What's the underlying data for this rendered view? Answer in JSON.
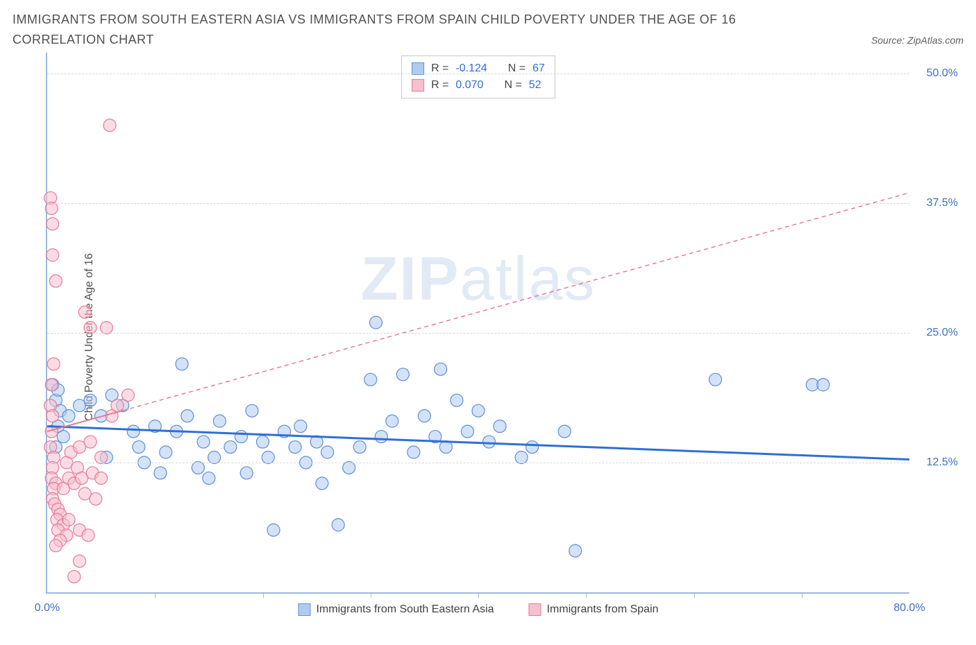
{
  "title": "IMMIGRANTS FROM SOUTH EASTERN ASIA VS IMMIGRANTS FROM SPAIN CHILD POVERTY UNDER THE AGE OF 16 CORRELATION CHART",
  "source_label": "Source: ZipAtlas.com",
  "y_axis_label": "Child Poverty Under the Age of 16",
  "watermark_bold": "ZIP",
  "watermark_rest": "atlas",
  "series": [
    {
      "key": "sea",
      "name": "Immigrants from South Eastern Asia",
      "fill": "#aecbef",
      "stroke": "#5e8fd6",
      "fill_opacity": 0.55,
      "trend_color": "#2e6fd6",
      "trend_width": 3,
      "trend_dash": "",
      "R": "-0.124",
      "N": "67",
      "trend_y_at_x0": 16.0,
      "trend_y_at_x80": 12.8,
      "points": [
        [
          0.5,
          20.0
        ],
        [
          0.8,
          18.5
        ],
        [
          1.0,
          19.5
        ],
        [
          1.2,
          17.5
        ],
        [
          1.0,
          16.0
        ],
        [
          1.5,
          15.0
        ],
        [
          0.8,
          14.0
        ],
        [
          2.0,
          17.0
        ],
        [
          3.0,
          18.0
        ],
        [
          4.0,
          18.5
        ],
        [
          5.0,
          17.0
        ],
        [
          5.5,
          13.0
        ],
        [
          6.0,
          19.0
        ],
        [
          7.0,
          18.0
        ],
        [
          8.0,
          15.5
        ],
        [
          8.5,
          14.0
        ],
        [
          9.0,
          12.5
        ],
        [
          10.0,
          16.0
        ],
        [
          10.5,
          11.5
        ],
        [
          11.0,
          13.5
        ],
        [
          12.0,
          15.5
        ],
        [
          12.5,
          22.0
        ],
        [
          13.0,
          17.0
        ],
        [
          14.0,
          12.0
        ],
        [
          14.5,
          14.5
        ],
        [
          15.0,
          11.0
        ],
        [
          15.5,
          13.0
        ],
        [
          16.0,
          16.5
        ],
        [
          17.0,
          14.0
        ],
        [
          18.0,
          15.0
        ],
        [
          18.5,
          11.5
        ],
        [
          19.0,
          17.5
        ],
        [
          20.0,
          14.5
        ],
        [
          20.5,
          13.0
        ],
        [
          21.0,
          6.0
        ],
        [
          22.0,
          15.5
        ],
        [
          23.0,
          14.0
        ],
        [
          23.5,
          16.0
        ],
        [
          24.0,
          12.5
        ],
        [
          25.0,
          14.5
        ],
        [
          25.5,
          10.5
        ],
        [
          26.0,
          13.5
        ],
        [
          27.0,
          6.5
        ],
        [
          28.0,
          12.0
        ],
        [
          29.0,
          14.0
        ],
        [
          30.0,
          20.5
        ],
        [
          30.5,
          26.0
        ],
        [
          31.0,
          15.0
        ],
        [
          32.0,
          16.5
        ],
        [
          33.0,
          21.0
        ],
        [
          34.0,
          13.5
        ],
        [
          35.0,
          17.0
        ],
        [
          36.0,
          15.0
        ],
        [
          36.5,
          21.5
        ],
        [
          37.0,
          14.0
        ],
        [
          38.0,
          18.5
        ],
        [
          39.0,
          15.5
        ],
        [
          40.0,
          17.5
        ],
        [
          41.0,
          14.5
        ],
        [
          42.0,
          16.0
        ],
        [
          44.0,
          13.0
        ],
        [
          45.0,
          14.0
        ],
        [
          48.0,
          15.5
        ],
        [
          49.0,
          4.0
        ],
        [
          62.0,
          20.5
        ],
        [
          71.0,
          20.0
        ],
        [
          72.0,
          20.0
        ]
      ]
    },
    {
      "key": "spain",
      "name": "Immigrants from Spain",
      "fill": "#f7c0ce",
      "stroke": "#e77a95",
      "fill_opacity": 0.55,
      "trend_color": "#e77a95",
      "trend_width": 2,
      "trend_dash": "6 5",
      "R": "0.070",
      "N": "52",
      "trend_y_at_x0": 15.5,
      "trend_y_at_x80": 38.5,
      "trend_solid_until_x": 7.0,
      "points": [
        [
          0.3,
          38.0
        ],
        [
          0.4,
          37.0
        ],
        [
          0.5,
          35.5
        ],
        [
          0.5,
          32.5
        ],
        [
          0.8,
          30.0
        ],
        [
          0.6,
          22.0
        ],
        [
          0.4,
          20.0
        ],
        [
          0.3,
          18.0
        ],
        [
          0.5,
          17.0
        ],
        [
          0.4,
          15.5
        ],
        [
          0.3,
          14.0
        ],
        [
          0.6,
          13.0
        ],
        [
          0.5,
          12.0
        ],
        [
          0.4,
          11.0
        ],
        [
          0.8,
          10.5
        ],
        [
          0.6,
          10.0
        ],
        [
          0.5,
          9.0
        ],
        [
          0.7,
          8.5
        ],
        [
          1.0,
          8.0
        ],
        [
          1.2,
          7.5
        ],
        [
          0.9,
          7.0
        ],
        [
          1.5,
          6.5
        ],
        [
          1.0,
          6.0
        ],
        [
          1.8,
          5.5
        ],
        [
          1.2,
          5.0
        ],
        [
          0.8,
          4.5
        ],
        [
          1.5,
          10.0
        ],
        [
          2.0,
          11.0
        ],
        [
          1.8,
          12.5
        ],
        [
          2.2,
          13.5
        ],
        [
          2.5,
          10.5
        ],
        [
          2.0,
          7.0
        ],
        [
          2.8,
          12.0
        ],
        [
          3.0,
          14.0
        ],
        [
          3.2,
          11.0
        ],
        [
          3.5,
          9.5
        ],
        [
          3.0,
          6.0
        ],
        [
          4.0,
          14.5
        ],
        [
          4.2,
          11.5
        ],
        [
          4.5,
          9.0
        ],
        [
          3.8,
          5.5
        ],
        [
          5.0,
          13.0
        ],
        [
          3.5,
          27.0
        ],
        [
          4.0,
          25.5
        ],
        [
          5.5,
          25.5
        ],
        [
          5.0,
          11.0
        ],
        [
          6.0,
          17.0
        ],
        [
          6.5,
          18.0
        ],
        [
          7.5,
          19.0
        ],
        [
          5.8,
          45.0
        ],
        [
          2.5,
          1.5
        ],
        [
          3.0,
          3.0
        ]
      ]
    }
  ],
  "chart": {
    "type": "scatter",
    "x_min": 0.0,
    "x_max": 80.0,
    "y_min": 0.0,
    "y_max": 52.0,
    "x_ticks": [
      0.0,
      80.0
    ],
    "x_tick_labels": [
      "0.0%",
      "80.0%"
    ],
    "x_minor_ticks": [
      10,
      20,
      30,
      40,
      50,
      60,
      70
    ],
    "y_gridlines": [
      12.5,
      25.0,
      37.5,
      50.0
    ],
    "y_tick_labels": [
      "12.5%",
      "25.0%",
      "37.5%",
      "50.0%"
    ],
    "grid_color": "#d8d8d8",
    "axis_color": "#9bb8e0",
    "tick_label_color": "#3b6fc9",
    "marker_radius": 9,
    "background": "#ffffff"
  },
  "legend_stats": {
    "R_label": "R =",
    "N_label": "N ="
  }
}
